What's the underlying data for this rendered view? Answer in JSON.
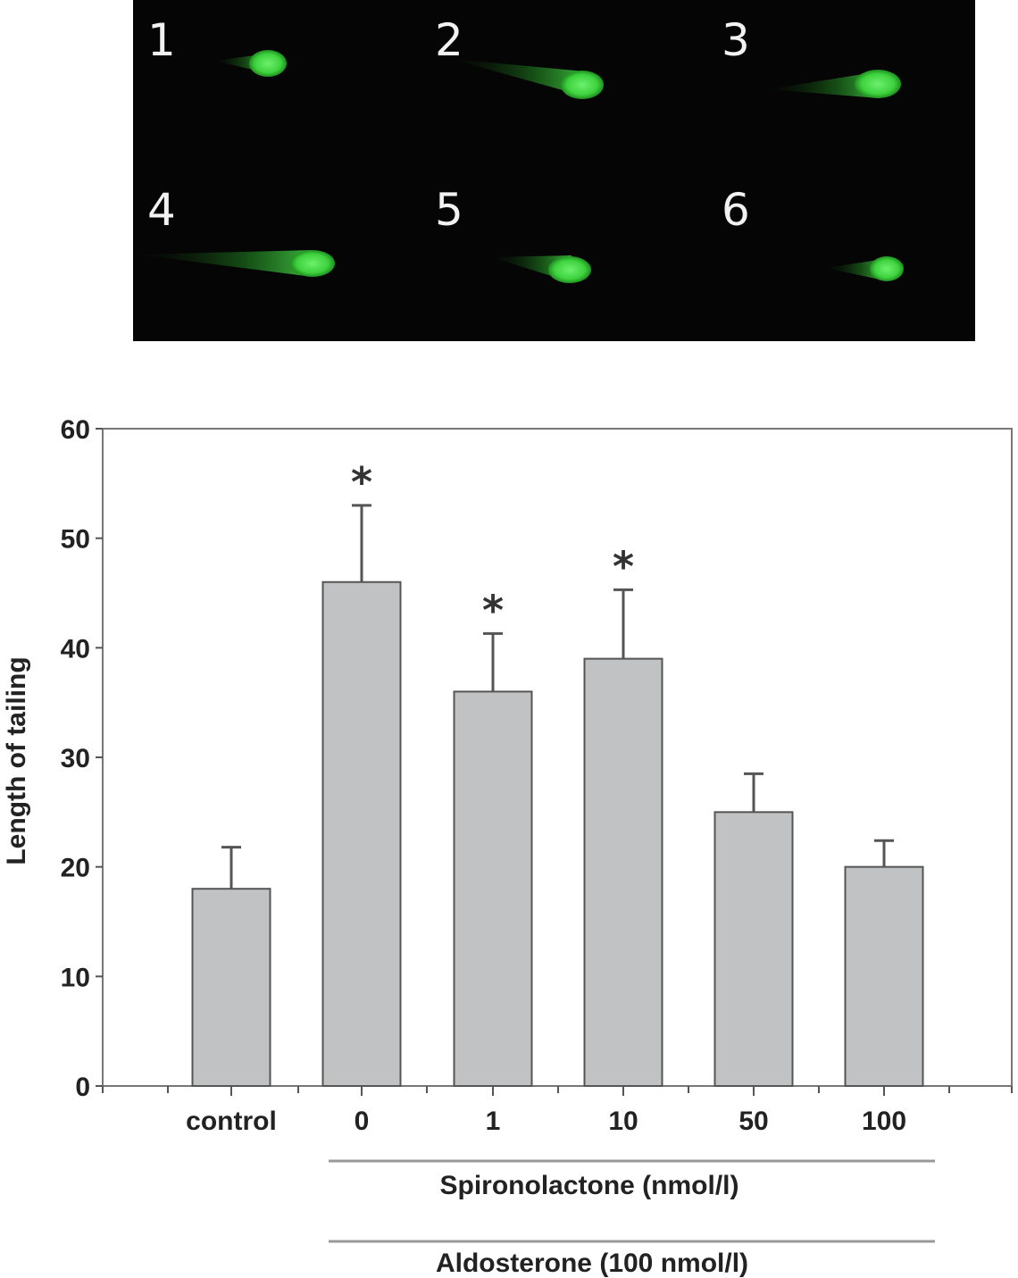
{
  "micrograph": {
    "panel_labels": [
      "1",
      "2",
      "3",
      "4",
      "5",
      "6"
    ]
  },
  "chart_data": {
    "type": "bar",
    "categories": [
      "control",
      "0",
      "1",
      "10",
      "50",
      "100"
    ],
    "values": [
      18,
      46,
      36,
      39,
      25,
      20
    ],
    "error_plus": [
      3.8,
      7,
      5.3,
      6.3,
      3.5,
      2.4
    ],
    "significant": [
      false,
      true,
      true,
      true,
      false,
      false
    ],
    "significance_marker": "*",
    "ylabel": "Length of tailing",
    "ylim": [
      0,
      60
    ],
    "yticks": [
      0,
      10,
      20,
      30,
      40,
      50,
      60
    ],
    "group_labels": [
      "Spironolactone (nmol/l)",
      "Aldosterone (100 nmol/l)"
    ],
    "grid": false,
    "bar_color": "#c0c2c4",
    "bar_edge_color": "#555555"
  }
}
